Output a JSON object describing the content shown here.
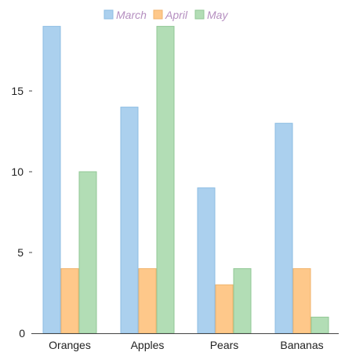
{
  "chart_data": {
    "type": "bar",
    "categories": [
      "Oranges",
      "Apples",
      "Pears",
      "Bananas"
    ],
    "series": [
      {
        "name": "March",
        "values": [
          19,
          14,
          9,
          13
        ],
        "color": "#abd0ee",
        "stroke": "#8ebde3"
      },
      {
        "name": "April",
        "values": [
          4,
          4,
          3,
          4
        ],
        "color": "#fec88a",
        "stroke": "#f0b36c"
      },
      {
        "name": "May",
        "values": [
          10,
          19,
          4,
          1
        ],
        "color": "#b2ddb5",
        "stroke": "#92c896"
      }
    ],
    "yticks": [
      0,
      5,
      10,
      15
    ],
    "ylim": [
      0,
      20
    ],
    "legend": {
      "position": "top-center",
      "text_color": "#b58fc0"
    },
    "grid": false,
    "axis_color": "#444444"
  }
}
